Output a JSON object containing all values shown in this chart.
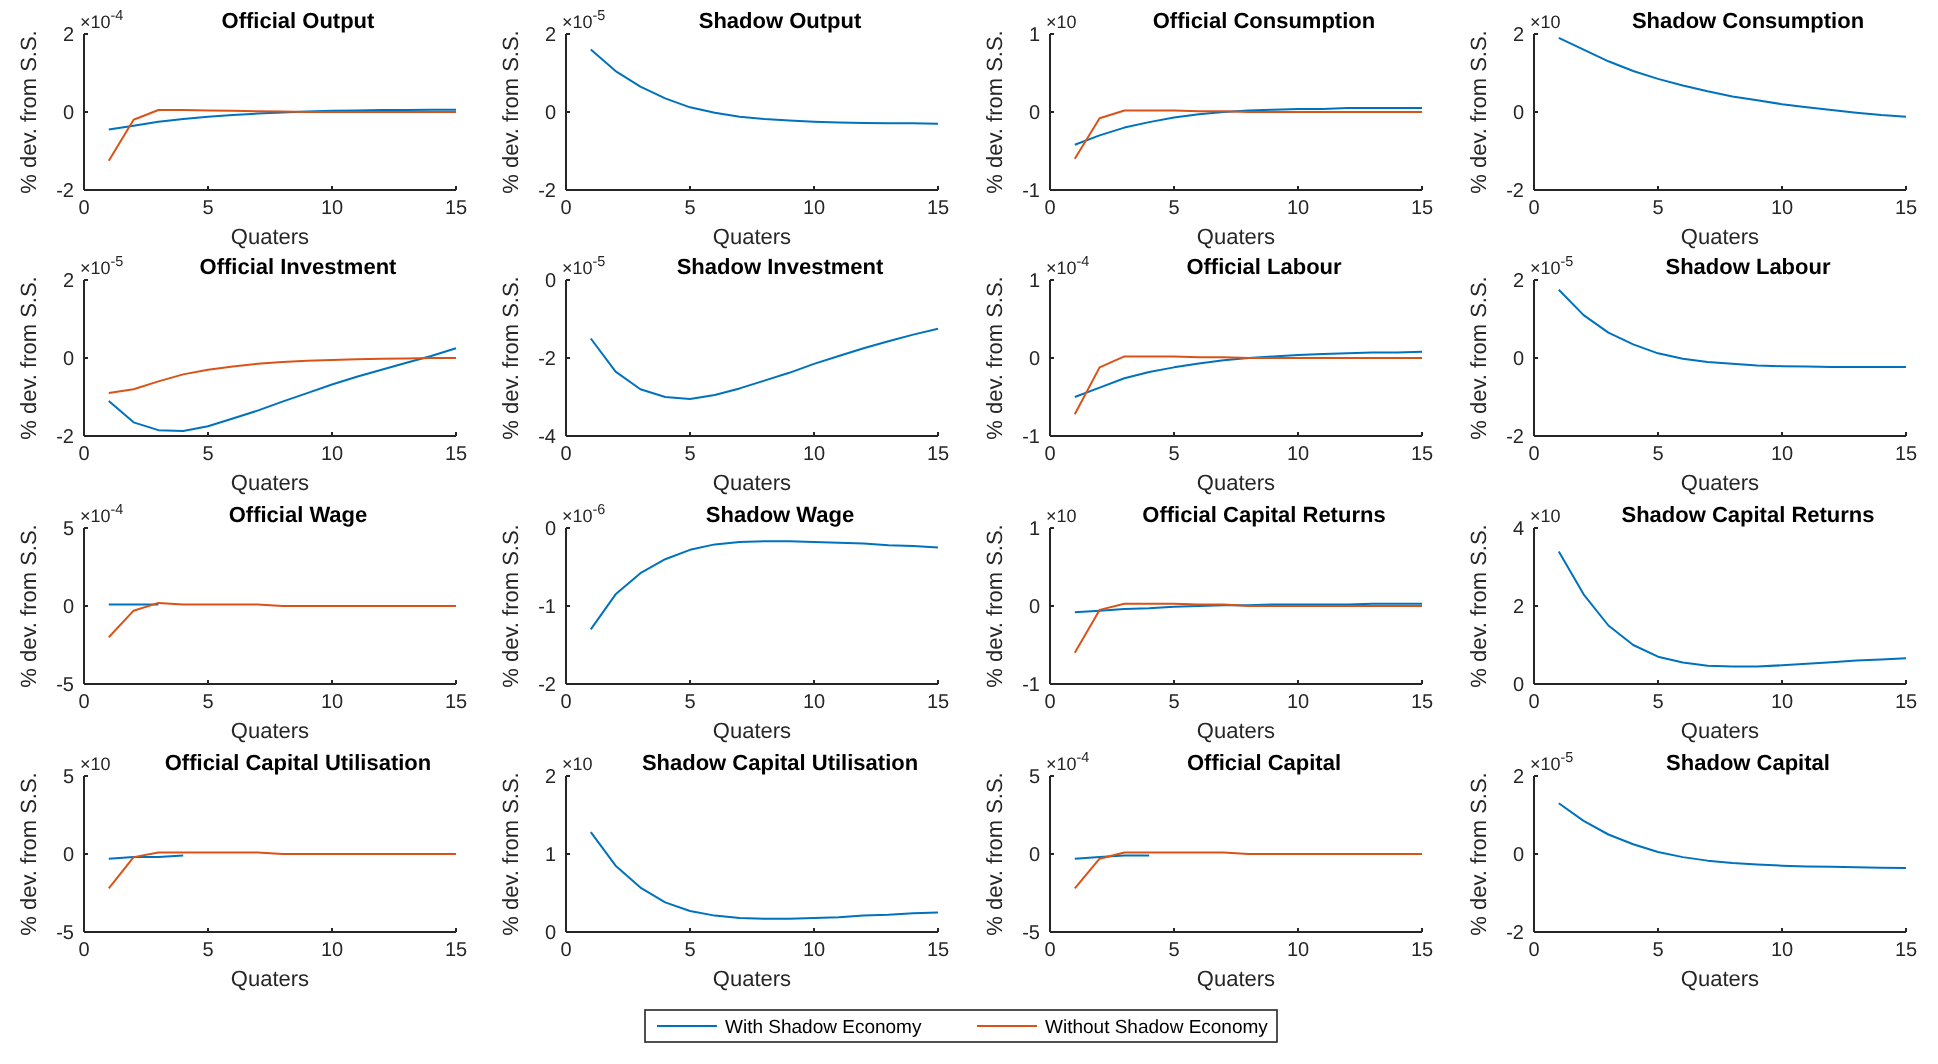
{
  "chart_data": [
    {
      "type": "line",
      "title": "Official Output",
      "xlabel": "Quaters",
      "ylabel": "% dev. from S.S.",
      "annotations": [
        "×10$^{-4}$"
      ],
      "x": [
        1,
        2,
        3,
        4,
        5,
        6,
        7,
        8,
        9,
        10,
        11,
        12,
        13,
        14,
        15
      ],
      "xlim": [
        0,
        15
      ],
      "xticks": [
        0,
        5,
        10,
        15
      ],
      "ylim": [
        -2,
        2
      ],
      "yticks": [
        -2,
        0,
        2
      ],
      "legend": "bottom",
      "series": [
        {
          "name": "With Shadow Economy",
          "color": "#0072bd",
          "values": [
            -0.45,
            -0.35,
            -0.25,
            -0.18,
            -0.12,
            -0.08,
            -0.04,
            -0.01,
            0.01,
            0.03,
            0.04,
            0.05,
            0.05,
            0.06,
            0.06
          ]
        },
        {
          "name": "Without Shadow Economy",
          "color": "#d95319",
          "values": [
            -1.25,
            -0.2,
            0.05,
            0.05,
            0.04,
            0.03,
            0.02,
            0.01,
            0,
            0,
            0,
            0,
            0,
            0,
            0
          ]
        }
      ]
    },
    {
      "type": "line",
      "title": "Shadow Output",
      "xlabel": "Quaters",
      "ylabel": "% dev. from S.S.",
      "annotations": [
        "×10$^{-5}$"
      ],
      "x": [
        1,
        2,
        3,
        4,
        5,
        6,
        7,
        8,
        9,
        10,
        11,
        12,
        13,
        14,
        15
      ],
      "xlim": [
        0,
        15
      ],
      "xticks": [
        0,
        5,
        10,
        15
      ],
      "ylim": [
        -2,
        2
      ],
      "yticks": [
        -2,
        0,
        2
      ],
      "series": [
        {
          "color": "#0072bd",
          "values": [
            1.6,
            1.05,
            0.65,
            0.35,
            0.12,
            -0.02,
            -0.12,
            -0.18,
            -0.22,
            -0.25,
            -0.27,
            -0.28,
            -0.29,
            -0.29,
            -0.3
          ]
        }
      ]
    },
    {
      "type": "line",
      "title": "Official Consumption",
      "xlabel": "Quaters",
      "ylabel": "% dev. from S.S.",
      "annotations": [
        "×10"
      ],
      "x": [
        1,
        2,
        3,
        4,
        5,
        6,
        7,
        8,
        9,
        10,
        11,
        12,
        13,
        14,
        15
      ],
      "xlim": [
        0,
        15
      ],
      "xticks": [
        0,
        5,
        10,
        15
      ],
      "ylim": [
        -1,
        1
      ],
      "yticks": [
        -1,
        0,
        1
      ],
      "series": [
        {
          "color": "#0072bd",
          "values": [
            -0.42,
            -0.3,
            -0.2,
            -0.13,
            -0.07,
            -0.03,
            0,
            0.02,
            0.03,
            0.04,
            0.04,
            0.05,
            0.05,
            0.05,
            0.05
          ]
        },
        {
          "color": "#d95319",
          "values": [
            -0.6,
            -0.08,
            0.02,
            0.02,
            0.02,
            0.01,
            0.01,
            0,
            0,
            0,
            0,
            0,
            0,
            0,
            0
          ]
        }
      ]
    },
    {
      "type": "line",
      "title": "Shadow Consumption",
      "xlabel": "Quaters",
      "ylabel": "% dev. from S.S.",
      "annotations": [
        "×10"
      ],
      "x": [
        1,
        2,
        3,
        4,
        5,
        6,
        7,
        8,
        9,
        10,
        11,
        12,
        13,
        14,
        15
      ],
      "xlim": [
        0,
        15
      ],
      "xticks": [
        0,
        5,
        10,
        15
      ],
      "ylim": [
        -2,
        2
      ],
      "yticks": [
        -2,
        0,
        2
      ],
      "series": [
        {
          "color": "#0072bd",
          "values": [
            1.9,
            1.6,
            1.3,
            1.05,
            0.85,
            0.68,
            0.53,
            0.4,
            0.3,
            0.2,
            0.12,
            0.05,
            -0.02,
            -0.08,
            -0.12
          ]
        }
      ]
    },
    {
      "type": "line",
      "title": "Official Investment",
      "xlabel": "Quaters",
      "ylabel": "% dev. from S.S.",
      "annotations": [
        "×10$^{-5}$"
      ],
      "x": [
        1,
        2,
        3,
        4,
        5,
        6,
        7,
        8,
        9,
        10,
        11,
        12,
        13,
        14,
        15
      ],
      "xlim": [
        0,
        15
      ],
      "xticks": [
        0,
        5,
        10,
        15
      ],
      "ylim": [
        -2,
        2
      ],
      "yticks": [
        -2,
        0,
        2
      ],
      "series": [
        {
          "color": "#0072bd",
          "values": [
            -1.1,
            -1.65,
            -1.85,
            -1.87,
            -1.75,
            -1.55,
            -1.35,
            -1.12,
            -0.9,
            -0.68,
            -0.48,
            -0.3,
            -0.12,
            0.05,
            0.25
          ]
        },
        {
          "color": "#d95319",
          "values": [
            -0.9,
            -0.8,
            -0.6,
            -0.42,
            -0.3,
            -0.22,
            -0.15,
            -0.1,
            -0.07,
            -0.05,
            -0.03,
            -0.02,
            -0.01,
            0,
            0
          ]
        }
      ]
    },
    {
      "type": "line",
      "title": "Shadow Investment",
      "xlabel": "Quaters",
      "ylabel": "% dev. from S.S.",
      "annotations": [
        "×10$^{-5}$"
      ],
      "x": [
        1,
        2,
        3,
        4,
        5,
        6,
        7,
        8,
        9,
        10,
        11,
        12,
        13,
        14,
        15
      ],
      "xlim": [
        0,
        15
      ],
      "xticks": [
        0,
        5,
        10,
        15
      ],
      "ylim": [
        -4,
        0
      ],
      "yticks": [
        -4,
        -2,
        0
      ],
      "series": [
        {
          "color": "#0072bd",
          "values": [
            -1.5,
            -2.35,
            -2.8,
            -3.0,
            -3.05,
            -2.95,
            -2.78,
            -2.58,
            -2.38,
            -2.15,
            -1.95,
            -1.75,
            -1.57,
            -1.4,
            -1.25
          ]
        }
      ]
    },
    {
      "type": "line",
      "title": "Official Labour",
      "xlabel": "Quaters",
      "ylabel": "% dev. from S.S.",
      "annotations": [
        "×10$^{-4}$"
      ],
      "x": [
        1,
        2,
        3,
        4,
        5,
        6,
        7,
        8,
        9,
        10,
        11,
        12,
        13,
        14,
        15
      ],
      "xlim": [
        0,
        15
      ],
      "xticks": [
        0,
        5,
        10,
        15
      ],
      "ylim": [
        -1,
        1
      ],
      "yticks": [
        -1,
        0,
        1
      ],
      "series": [
        {
          "color": "#0072bd",
          "values": [
            -0.5,
            -0.38,
            -0.26,
            -0.18,
            -0.12,
            -0.07,
            -0.03,
            0,
            0.02,
            0.04,
            0.05,
            0.06,
            0.07,
            0.07,
            0.08
          ]
        },
        {
          "color": "#d95319",
          "values": [
            -0.72,
            -0.12,
            0.02,
            0.02,
            0.02,
            0.01,
            0.01,
            0,
            0,
            0,
            0,
            0,
            0,
            0,
            0
          ]
        }
      ]
    },
    {
      "type": "line",
      "title": "Shadow Labour",
      "xlabel": "Quaters",
      "ylabel": "% dev. from S.S.",
      "annotations": [
        "×10$^{-5}$"
      ],
      "x": [
        1,
        2,
        3,
        4,
        5,
        6,
        7,
        8,
        9,
        10,
        11,
        12,
        13,
        14,
        15
      ],
      "xlim": [
        0,
        15
      ],
      "xticks": [
        0,
        5,
        10,
        15
      ],
      "ylim": [
        -2,
        2
      ],
      "yticks": [
        -2,
        0,
        2
      ],
      "series": [
        {
          "color": "#0072bd",
          "values": [
            1.75,
            1.1,
            0.65,
            0.35,
            0.12,
            -0.02,
            -0.1,
            -0.15,
            -0.19,
            -0.21,
            -0.22,
            -0.23,
            -0.23,
            -0.23,
            -0.23
          ]
        }
      ]
    },
    {
      "type": "line",
      "title": "Official Wage",
      "xlabel": "Quaters",
      "ylabel": "% dev. from S.S.",
      "annotations": [
        "×10$^{-4}$"
      ],
      "x": [
        1,
        2,
        3,
        4,
        5,
        6,
        7,
        8,
        9,
        10,
        11,
        12,
        13,
        14,
        15
      ],
      "xlim": [
        0,
        15
      ],
      "xticks": [
        0,
        5,
        10,
        15
      ],
      "ylim": [
        -5,
        5
      ],
      "yticks": [
        -5,
        0,
        5
      ],
      "series": [
        {
          "color": "#0072bd",
          "values": [
            0.1,
            0.1,
            0.1,
            null,
            null,
            null,
            null,
            null,
            null,
            null,
            null,
            null,
            null,
            null,
            null
          ]
        },
        {
          "color": "#d95319",
          "values": [
            -2.0,
            -0.3,
            0.2,
            0.1,
            0.1,
            0.1,
            0.1,
            0,
            0,
            0,
            0,
            0,
            0,
            0,
            0
          ]
        }
      ]
    },
    {
      "type": "line",
      "title": "Shadow Wage",
      "xlabel": "Quaters",
      "ylabel": "% dev. from S.S.",
      "annotations": [
        "×10$^{-6}$"
      ],
      "x": [
        1,
        2,
        3,
        4,
        5,
        6,
        7,
        8,
        9,
        10,
        11,
        12,
        13,
        14,
        15
      ],
      "xlim": [
        0,
        15
      ],
      "xticks": [
        0,
        5,
        10,
        15
      ],
      "ylim": [
        -2,
        0
      ],
      "yticks": [
        -2,
        -1,
        0
      ],
      "series": [
        {
          "color": "#0072bd",
          "values": [
            -1.3,
            -0.85,
            -0.58,
            -0.4,
            -0.28,
            -0.21,
            -0.18,
            -0.17,
            -0.17,
            -0.18,
            -0.19,
            -0.2,
            -0.22,
            -0.23,
            -0.25
          ]
        }
      ]
    },
    {
      "type": "line",
      "title": "Official Capital Returns",
      "xlabel": "Quaters",
      "ylabel": "% dev. from S.S.",
      "annotations": [
        "×10"
      ],
      "x": [
        1,
        2,
        3,
        4,
        5,
        6,
        7,
        8,
        9,
        10,
        11,
        12,
        13,
        14,
        15
      ],
      "xlim": [
        0,
        15
      ],
      "xticks": [
        0,
        5,
        10,
        15
      ],
      "ylim": [
        -1,
        1
      ],
      "yticks": [
        -1,
        0,
        1
      ],
      "series": [
        {
          "color": "#0072bd",
          "values": [
            -0.08,
            -0.06,
            -0.04,
            -0.03,
            -0.01,
            0,
            0.01,
            0.01,
            0.02,
            0.02,
            0.02,
            0.02,
            0.03,
            0.03,
            0.03
          ]
        },
        {
          "color": "#d95319",
          "values": [
            -0.6,
            -0.05,
            0.03,
            0.03,
            0.03,
            0.02,
            0.02,
            0,
            0,
            0,
            0,
            0,
            0,
            0,
            0
          ]
        }
      ]
    },
    {
      "type": "line",
      "title": "Shadow Capital Returns",
      "xlabel": "Quaters",
      "ylabel": "% dev. from S.S.",
      "annotations": [
        "×10"
      ],
      "x": [
        1,
        2,
        3,
        4,
        5,
        6,
        7,
        8,
        9,
        10,
        11,
        12,
        13,
        14,
        15
      ],
      "xlim": [
        0,
        15
      ],
      "xticks": [
        0,
        5,
        10,
        15
      ],
      "ylim": [
        0,
        4
      ],
      "yticks": [
        0,
        2,
        4
      ],
      "series": [
        {
          "color": "#0072bd",
          "values": [
            3.4,
            2.3,
            1.5,
            1.0,
            0.7,
            0.55,
            0.47,
            0.45,
            0.45,
            0.48,
            0.52,
            0.56,
            0.6,
            0.63,
            0.66
          ]
        }
      ]
    },
    {
      "type": "line",
      "title": "Official Capital Utilisation",
      "xlabel": "Quaters",
      "ylabel": "% dev. from S.S.",
      "annotations": [
        "×10"
      ],
      "x": [
        1,
        2,
        3,
        4,
        5,
        6,
        7,
        8,
        9,
        10,
        11,
        12,
        13,
        14,
        15
      ],
      "xlim": [
        0,
        15
      ],
      "xticks": [
        0,
        5,
        10,
        15
      ],
      "ylim": [
        -5,
        5
      ],
      "yticks": [
        -5,
        0,
        5
      ],
      "series": [
        {
          "color": "#0072bd",
          "values": [
            -0.3,
            -0.2,
            -0.2,
            -0.1,
            null,
            null,
            null,
            null,
            null,
            null,
            null,
            null,
            null,
            null,
            null
          ]
        },
        {
          "color": "#d95319",
          "values": [
            -2.2,
            -0.2,
            0.1,
            0.1,
            0.1,
            0.1,
            0.1,
            0,
            0,
            0,
            0,
            0,
            0,
            0,
            0
          ]
        }
      ]
    },
    {
      "type": "line",
      "title": "Shadow Capital Utilisation",
      "xlabel": "Quaters",
      "ylabel": "% dev. from S.S.",
      "annotations": [
        "×10"
      ],
      "x": [
        1,
        2,
        3,
        4,
        5,
        6,
        7,
        8,
        9,
        10,
        11,
        12,
        13,
        14,
        15
      ],
      "xlim": [
        0,
        15
      ],
      "xticks": [
        0,
        5,
        10,
        15
      ],
      "ylim": [
        0,
        2
      ],
      "yticks": [
        0,
        1,
        2
      ],
      "series": [
        {
          "color": "#0072bd",
          "values": [
            1.28,
            0.85,
            0.57,
            0.38,
            0.27,
            0.21,
            0.18,
            0.17,
            0.17,
            0.18,
            0.19,
            0.21,
            0.22,
            0.24,
            0.25
          ]
        }
      ]
    },
    {
      "type": "line",
      "title": "Official Capital",
      "xlabel": "Quaters",
      "ylabel": "% dev. from S.S.",
      "annotations": [
        "×10$^{-4}$"
      ],
      "x": [
        1,
        2,
        3,
        4,
        5,
        6,
        7,
        8,
        9,
        10,
        11,
        12,
        13,
        14,
        15
      ],
      "xlim": [
        0,
        15
      ],
      "xticks": [
        0,
        5,
        10,
        15
      ],
      "ylim": [
        -5,
        5
      ],
      "yticks": [
        -5,
        0,
        5
      ],
      "series": [
        {
          "color": "#0072bd",
          "values": [
            -0.3,
            -0.2,
            -0.1,
            -0.1,
            null,
            null,
            null,
            null,
            null,
            null,
            null,
            null,
            null,
            null,
            null
          ]
        },
        {
          "color": "#d95319",
          "values": [
            -2.2,
            -0.3,
            0.1,
            0.1,
            0.1,
            0.1,
            0.1,
            0,
            0,
            0,
            0,
            0,
            0,
            0,
            0
          ]
        }
      ]
    },
    {
      "type": "line",
      "title": "Shadow Capital",
      "xlabel": "Quaters",
      "ylabel": "% dev. from S.S.",
      "annotations": [
        "×10$^{-5}$"
      ],
      "x": [
        1,
        2,
        3,
        4,
        5,
        6,
        7,
        8,
        9,
        10,
        11,
        12,
        13,
        14,
        15
      ],
      "xlim": [
        0,
        15
      ],
      "xticks": [
        0,
        5,
        10,
        15
      ],
      "ylim": [
        -2,
        2
      ],
      "yticks": [
        -2,
        0,
        2
      ],
      "series": [
        {
          "color": "#0072bd",
          "values": [
            1.3,
            0.85,
            0.5,
            0.25,
            0.05,
            -0.08,
            -0.17,
            -0.23,
            -0.27,
            -0.3,
            -0.32,
            -0.33,
            -0.34,
            -0.35,
            -0.36
          ]
        }
      ]
    }
  ]
}
